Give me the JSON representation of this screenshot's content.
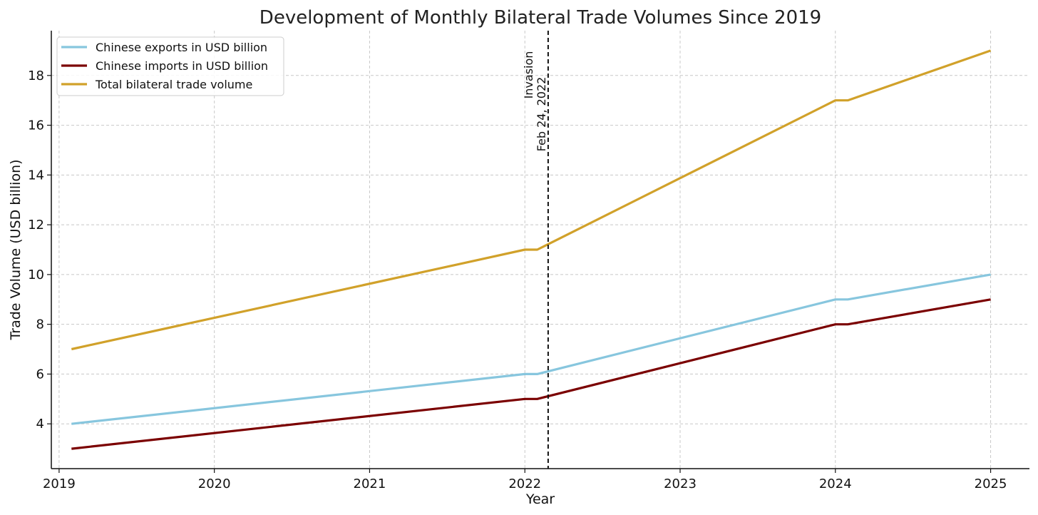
{
  "chart_data": {
    "type": "line",
    "title": "Development of Monthly Bilateral Trade Volumes Since 2019",
    "xlabel": "Year",
    "ylabel": "Trade Volume (USD billion)",
    "xlim": [
      2018.95,
      2025.25
    ],
    "ylim": [
      2.2,
      19.8
    ],
    "xticks": [
      "2019",
      "2020",
      "2021",
      "2022",
      "2023",
      "2024",
      "2025"
    ],
    "yticks": [
      "4",
      "6",
      "8",
      "10",
      "12",
      "14",
      "16",
      "18"
    ],
    "grid": true,
    "legend_position": "top-left",
    "x": [
      2019.08,
      2022.0,
      2022.08,
      2024.0,
      2024.08,
      2025.0
    ],
    "series": [
      {
        "name": "Chinese exports in USD billion",
        "color": "#87c6de",
        "values": [
          4,
          6,
          6,
          9,
          9,
          10
        ]
      },
      {
        "name": "Chinese imports in USD billion",
        "color": "#7b0000",
        "values": [
          3,
          5,
          5,
          8,
          8,
          9
        ]
      },
      {
        "name": "Total bilateral trade volume",
        "color": "#d1a12a",
        "values": [
          7,
          11,
          11,
          17,
          17,
          19
        ]
      }
    ],
    "annotation": {
      "date": "2022-02-24",
      "x": 2022.15,
      "label_line1": "Invasion",
      "label_line2": "Feb 24, 2022"
    }
  }
}
